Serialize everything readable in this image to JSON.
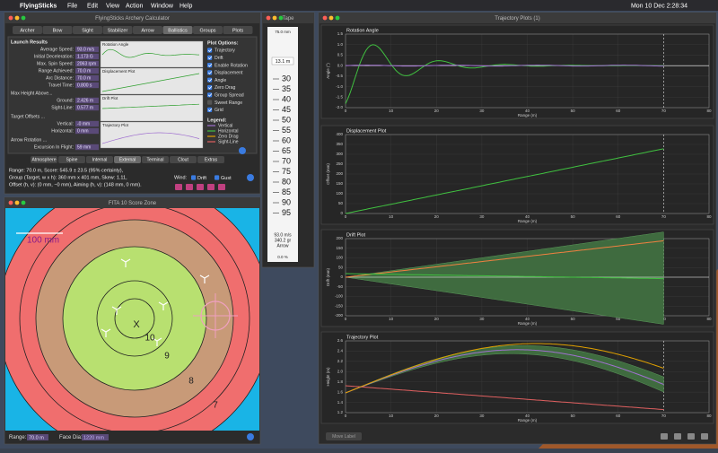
{
  "menu_bar": {
    "app": "FlyingSticks",
    "items": [
      "File",
      "Edit",
      "View",
      "Action",
      "Window",
      "Help"
    ],
    "clock": "Mon 10 Dec  2:28:34"
  },
  "calculator": {
    "title": "FlyingSticks Archery Calculator",
    "tabs": [
      "Archer",
      "Bow",
      "Sight",
      "Stabilizer",
      "Arrow",
      "Ballistics",
      "Groups",
      "Plots"
    ],
    "active_tab": 5,
    "section": "Launch Results",
    "results": [
      {
        "label": "Average Speed:",
        "value": "93.0 m/s"
      },
      {
        "label": "Initial Deceleration:",
        "value": "1.173 G"
      },
      {
        "label": "Max. Spin Speed:",
        "value": "2063 rpm"
      },
      {
        "label": "Range Achieved:",
        "value": "70.0 m"
      },
      {
        "label": "Arc Distance:",
        "value": "70.0 m"
      },
      {
        "label": "Travel Time:",
        "value": "0.800 s"
      }
    ],
    "height_heading": "Max Height Above...",
    "height": [
      {
        "label": "Ground:",
        "value": "2.426 m"
      },
      {
        "label": "Sight-Line:",
        "value": "0.577 m"
      }
    ],
    "offsets_heading": "Target Offsets ...",
    "offsets": [
      {
        "label": "Vertical:",
        "value": "-0 mm"
      },
      {
        "label": "Horizontal:",
        "value": "0 mm"
      }
    ],
    "rotation_heading": "Arrow Rotation ...",
    "rotation": [
      {
        "label": "Excursion In Flight:",
        "value": "59 mm"
      }
    ],
    "mini_plots": [
      "Rotation Angle",
      "Displacement Plot",
      "Drift Plot",
      "Trajectory Plot"
    ],
    "plot_options_heading": "Plot Options:",
    "plot_options": [
      {
        "label": "Trajectory",
        "checked": true
      },
      {
        "label": "Drift",
        "checked": true
      },
      {
        "label": "Enable Rotation",
        "checked": true
      },
      {
        "label": "Displacement",
        "checked": true
      },
      {
        "label": "Angle",
        "checked": true
      },
      {
        "label": "Zero Drag",
        "checked": true
      },
      {
        "label": "Group Spread",
        "checked": true
      },
      {
        "label": "Sweet Range",
        "checked": false
      },
      {
        "label": "Grid",
        "checked": true
      }
    ],
    "legend_heading": "Legend:",
    "legend": [
      {
        "name": "Vertical",
        "color": "#a070d0"
      },
      {
        "name": "Horizontal",
        "color": "#40c040"
      },
      {
        "name": "Zero Drag",
        "color": "#e0a000"
      },
      {
        "name": "Sight-Line",
        "color": "#e06060"
      }
    ],
    "bottom_tabs": [
      "Atmosphere",
      "Spine",
      "Internal",
      "External",
      "Terminal",
      "Clout",
      "Extras"
    ],
    "active_bottom_tab": 3,
    "summary": [
      "Range: 70.0 m, Score: 545.9  ± 23.5 (95% certainty),",
      "Group (Target, w x h): 360 mm x 401 mm, Skew: 1.11,",
      "Offset (h, v): (0 mm, −0 mm), Aiming (h, v): (148 mm, 0 mm)."
    ],
    "wind": {
      "label": "Wind:",
      "drift": "Drift",
      "gust": "Gust"
    }
  },
  "tape": {
    "title": "Tape",
    "top": "75.0 mm",
    "distance": "13.1 m",
    "scale": [
      "30",
      "35",
      "40",
      "45",
      "50",
      "55",
      "60",
      "65",
      "70",
      "75",
      "80",
      "85",
      "90",
      "95"
    ],
    "speed": "93.0 m/s",
    "mass": "340.2 gr",
    "arrow": "Arrow",
    "percent": "0.0 %"
  },
  "score": {
    "title": "FITA 10 Score Zone",
    "scale_label": "100 mm",
    "center": "X",
    "rings": [
      "10",
      "9",
      "8",
      "7"
    ],
    "range_label": "Range:",
    "range": "70.0 m",
    "face_label": "Face Dia:",
    "face": "1220 mm"
  },
  "plots": {
    "title": "Trajectory Plots (1)",
    "x_label": "Range (m)",
    "xticks": [
      "0",
      "10",
      "20",
      "30",
      "40",
      "50",
      "60",
      "70",
      "80"
    ],
    "button": "Move Label",
    "panels": [
      {
        "title": "Rotation Angle",
        "y_label": "Angle (°)",
        "yticks": [
          "1.5",
          "1.0",
          "0.5",
          "0.0",
          "-0.5",
          "-1.0",
          "-1.5",
          "-2.0"
        ]
      },
      {
        "title": "Displacement Plot",
        "y_label": "Offset (mm)",
        "yticks": [
          "400",
          "350",
          "300",
          "250",
          "200",
          "150",
          "100",
          "50",
          "0"
        ]
      },
      {
        "title": "Drift Plot",
        "y_label": "Drift (mm)",
        "yticks": [
          "200",
          "150",
          "100",
          "50",
          "0",
          "-50",
          "-100",
          "-150",
          "-200"
        ]
      },
      {
        "title": "Trajectory Plot",
        "y_label": "Height (m)",
        "yticks": [
          "2.6",
          "2.4",
          "2.2",
          "2.0",
          "1.8",
          "1.6",
          "1.4",
          "1.2"
        ]
      }
    ]
  }
}
